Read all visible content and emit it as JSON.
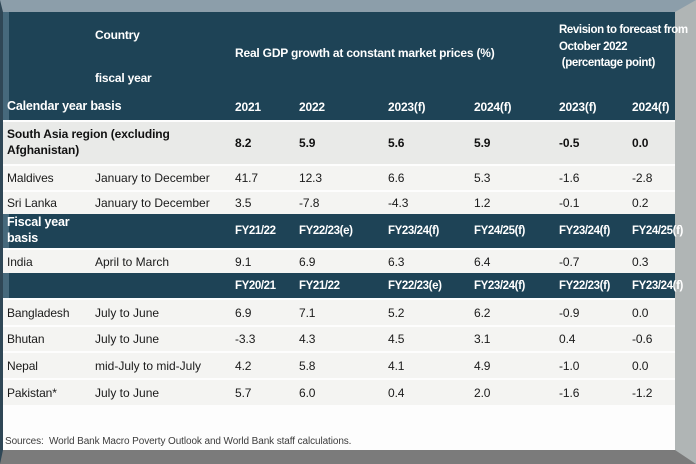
{
  "colors": {
    "header_teal": "#1e4356",
    "band_accent": "#46697c",
    "row_gray": "#e9eae8",
    "row_light": "#f4f4f2",
    "frame_top": "#8c9eaa",
    "frame_right": "#b0b5b5",
    "frame_bottom": "#7b7b7b",
    "frame_left": "#2f4756"
  },
  "header": {
    "country_label": "Country",
    "fiscal_year_label": "fiscal year",
    "gdp_header": "Real GDP growth at constant market prices (%)",
    "revision_header": "Revision to forecast from\nOctober 2022\n (percentage point)"
  },
  "calendar_section": {
    "label": "Calendar year basis",
    "columns": [
      "2021",
      "2022",
      "2023(f)",
      "2024(f)",
      "2023(f)",
      "2024(f)"
    ],
    "rows": [
      {
        "name": "South Asia region (excluding Afghanistan)",
        "period": "",
        "values": [
          "8.2",
          "5.9",
          "5.6",
          "5.9",
          "-0.5",
          "0.0"
        ]
      },
      {
        "name": "Maldives",
        "period": "January to December",
        "values": [
          "41.7",
          "12.3",
          "6.6",
          "5.3",
          "-1.6",
          "-2.8"
        ]
      },
      {
        "name": "Sri Lanka",
        "period": "January to December",
        "values": [
          "3.5",
          "-7.8",
          "-4.3",
          "1.2",
          "-0.1",
          "0.2"
        ]
      }
    ]
  },
  "fiscal_section": {
    "label": "Fiscal year\nbasis",
    "columns": [
      "FY21/22",
      "FY22/23(e)",
      "FY23/24(f)",
      "FY24/25(f)",
      "FY23/24(f)",
      "FY24/25(f)"
    ],
    "rows": [
      {
        "name": "India",
        "period": "April to March",
        "values": [
          "9.1",
          "6.9",
          "6.3",
          "6.4",
          "-0.7",
          "0.3"
        ]
      }
    ]
  },
  "fiscal_section2": {
    "label": "",
    "columns": [
      "FY20/21",
      "FY21/22",
      "FY22/23(e)",
      "FY23/24(f)",
      "FY22/23(f)",
      "FY23/24(f)"
    ],
    "rows": [
      {
        "name": "Bangladesh",
        "period": "July to June",
        "values": [
          "6.9",
          "7.1",
          "5.2",
          "6.2",
          "-0.9",
          "0.0"
        ]
      },
      {
        "name": "Bhutan",
        "period": "July to June",
        "values": [
          "-3.3",
          "4.3",
          "4.5",
          "3.1",
          "0.4",
          "-0.6"
        ]
      },
      {
        "name": "Nepal",
        "period": "mid-July to mid-July",
        "values": [
          "4.2",
          "5.8",
          "4.1",
          "4.9",
          "-1.0",
          "0.0"
        ]
      },
      {
        "name": "Pakistan*",
        "period": "July to June",
        "values": [
          "5.7",
          "6.0",
          "0.4",
          "2.0",
          "-1.6",
          "-1.2"
        ]
      }
    ]
  },
  "footer": {
    "sources": "Sources:  World Bank Macro Poverty Outlook and World Bank staff calculations."
  }
}
